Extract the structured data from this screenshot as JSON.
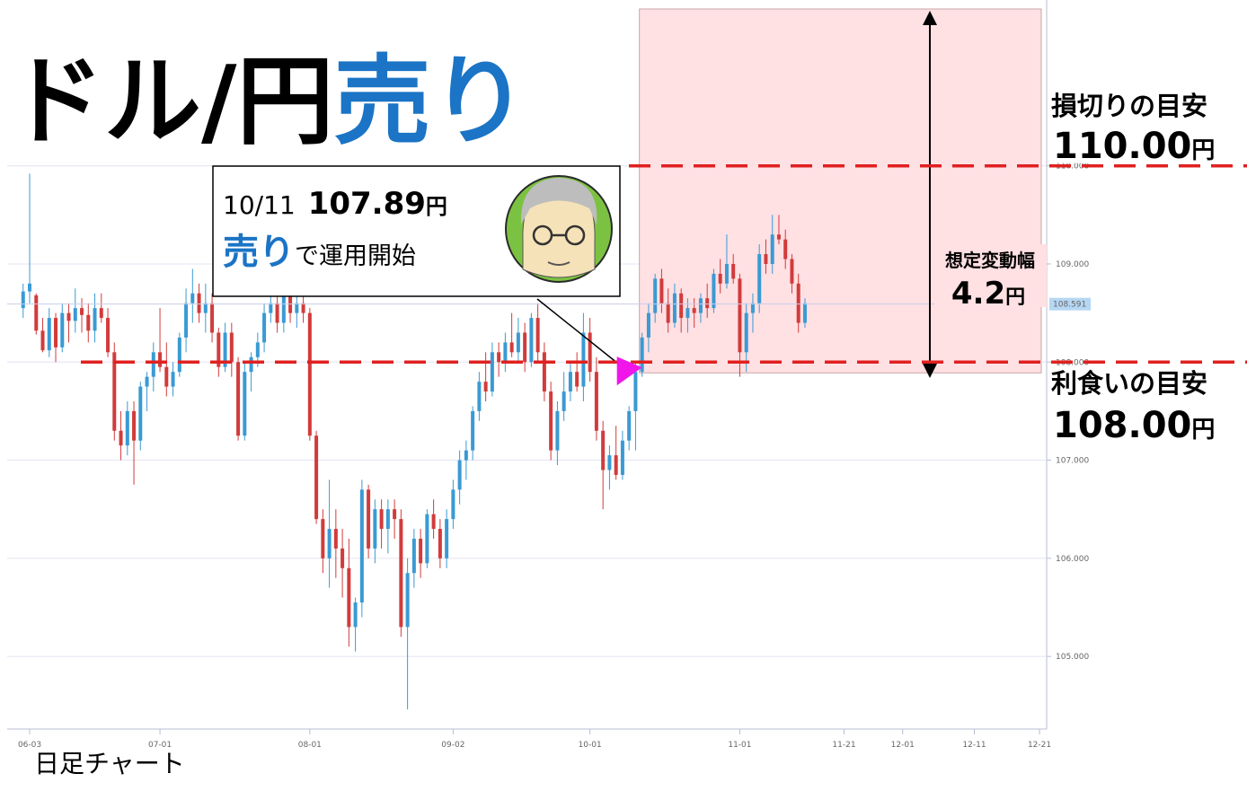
{
  "title": {
    "main": "ドル/円",
    "accent": "売り"
  },
  "chart_data": {
    "type": "candlestick",
    "ohlc": [
      [
        108.55,
        108.8,
        108.45,
        108.72
      ],
      [
        108.72,
        109.92,
        108.6,
        108.8
      ],
      [
        108.68,
        108.7,
        108.28,
        108.32
      ],
      [
        108.32,
        108.45,
        108.1,
        108.12
      ],
      [
        108.12,
        108.55,
        108.05,
        108.45
      ],
      [
        108.45,
        108.5,
        108.0,
        108.15
      ],
      [
        108.15,
        108.6,
        108.1,
        108.5
      ],
      [
        108.5,
        108.6,
        108.2,
        108.42
      ],
      [
        108.42,
        108.75,
        108.3,
        108.55
      ],
      [
        108.55,
        108.65,
        108.3,
        108.48
      ],
      [
        108.48,
        108.6,
        108.2,
        108.32
      ],
      [
        108.32,
        108.7,
        108.2,
        108.55
      ],
      [
        108.55,
        108.7,
        108.4,
        108.45
      ],
      [
        108.45,
        108.55,
        108.05,
        108.1
      ],
      [
        108.1,
        108.2,
        107.2,
        107.3
      ],
      [
        107.3,
        107.5,
        107.0,
        107.15
      ],
      [
        107.15,
        107.6,
        107.05,
        107.5
      ],
      [
        107.5,
        107.6,
        106.75,
        107.2
      ],
      [
        107.2,
        107.8,
        107.1,
        107.75
      ],
      [
        107.75,
        107.9,
        107.5,
        107.85
      ],
      [
        107.85,
        108.2,
        107.7,
        108.1
      ],
      [
        108.1,
        108.55,
        107.9,
        107.95
      ],
      [
        107.95,
        108.2,
        107.65,
        107.75
      ],
      [
        107.75,
        108.0,
        107.65,
        107.9
      ],
      [
        107.9,
        108.3,
        107.85,
        108.25
      ],
      [
        108.25,
        108.75,
        108.1,
        108.6
      ],
      [
        108.6,
        108.95,
        108.4,
        108.7
      ],
      [
        108.7,
        108.8,
        108.4,
        108.5
      ],
      [
        108.5,
        108.8,
        108.3,
        108.6
      ],
      [
        108.6,
        108.7,
        108.2,
        108.3
      ],
      [
        108.3,
        108.35,
        107.85,
        107.95
      ],
      [
        107.95,
        108.4,
        107.9,
        108.3
      ],
      [
        108.3,
        108.4,
        107.85,
        108.0
      ],
      [
        108.0,
        108.05,
        107.2,
        107.25
      ],
      [
        107.25,
        108.0,
        107.2,
        107.9
      ],
      [
        107.9,
        108.1,
        107.7,
        108.05
      ],
      [
        108.05,
        108.3,
        107.95,
        108.2
      ],
      [
        108.2,
        108.6,
        108.1,
        108.5
      ],
      [
        108.5,
        108.8,
        108.4,
        108.6
      ],
      [
        108.6,
        108.75,
        108.3,
        108.4
      ],
      [
        108.4,
        108.8,
        108.3,
        108.7
      ],
      [
        108.7,
        108.8,
        108.4,
        108.5
      ],
      [
        108.5,
        108.75,
        108.35,
        108.6
      ],
      [
        108.6,
        108.9,
        108.4,
        108.5
      ],
      [
        108.5,
        108.55,
        107.2,
        107.25
      ],
      [
        107.25,
        107.3,
        106.35,
        106.4
      ],
      [
        106.4,
        106.5,
        105.85,
        106.0
      ],
      [
        106.0,
        106.8,
        105.7,
        106.3
      ],
      [
        106.3,
        106.5,
        105.8,
        106.1
      ],
      [
        106.1,
        106.3,
        105.6,
        105.9
      ],
      [
        105.9,
        106.2,
        105.1,
        105.3
      ],
      [
        105.3,
        105.6,
        105.05,
        105.55
      ],
      [
        105.55,
        106.8,
        105.4,
        106.7
      ],
      [
        106.7,
        106.75,
        106.0,
        106.1
      ],
      [
        106.1,
        106.6,
        105.95,
        106.5
      ],
      [
        106.5,
        106.6,
        106.1,
        106.3
      ],
      [
        106.3,
        106.6,
        106.05,
        106.5
      ],
      [
        106.5,
        106.6,
        106.2,
        106.4
      ],
      [
        106.4,
        106.5,
        105.2,
        105.3
      ],
      [
        105.3,
        106.0,
        104.46,
        105.85
      ],
      [
        105.85,
        106.3,
        105.7,
        106.2
      ],
      [
        106.2,
        106.3,
        105.8,
        105.95
      ],
      [
        105.95,
        106.5,
        105.9,
        106.45
      ],
      [
        106.45,
        106.6,
        106.2,
        106.3
      ],
      [
        106.3,
        106.4,
        105.9,
        106.0
      ],
      [
        106.0,
        106.5,
        105.9,
        106.4
      ],
      [
        106.4,
        106.8,
        106.3,
        106.7
      ],
      [
        106.7,
        107.1,
        106.55,
        107.0
      ],
      [
        107.0,
        107.2,
        106.8,
        107.1
      ],
      [
        107.1,
        107.55,
        107.0,
        107.5
      ],
      [
        107.5,
        107.9,
        107.4,
        107.8
      ],
      [
        107.8,
        108.1,
        107.6,
        107.7
      ],
      [
        107.7,
        108.2,
        107.65,
        108.1
      ],
      [
        108.1,
        108.2,
        107.85,
        108.0
      ],
      [
        108.0,
        108.3,
        107.9,
        108.2
      ],
      [
        108.2,
        108.5,
        108.05,
        108.1
      ],
      [
        108.1,
        108.45,
        108.0,
        108.3
      ],
      [
        108.3,
        108.4,
        107.9,
        108.0
      ],
      [
        108.0,
        108.5,
        107.95,
        108.45
      ],
      [
        108.45,
        108.6,
        108.0,
        108.1
      ],
      [
        108.1,
        108.2,
        107.6,
        107.7
      ],
      [
        107.7,
        107.8,
        107.0,
        107.1
      ],
      [
        107.1,
        107.6,
        106.95,
        107.5
      ],
      [
        107.5,
        107.9,
        107.4,
        107.7
      ],
      [
        107.7,
        108.0,
        107.6,
        107.9
      ],
      [
        107.9,
        108.1,
        107.7,
        107.75
      ],
      [
        107.75,
        108.5,
        107.6,
        108.3
      ],
      [
        108.3,
        108.45,
        107.8,
        107.9
      ],
      [
        107.9,
        108.05,
        107.2,
        107.3
      ],
      [
        107.3,
        107.4,
        106.5,
        106.9
      ],
      [
        106.9,
        107.15,
        106.7,
        107.05
      ],
      [
        107.05,
        107.35,
        106.8,
        106.85
      ],
      [
        106.85,
        107.3,
        106.8,
        107.2
      ],
      [
        107.2,
        107.55,
        107.1,
        107.5
      ],
      [
        107.5,
        108.0,
        107.1,
        107.9
      ],
      [
        107.9,
        108.3,
        107.85,
        108.25
      ],
      [
        108.25,
        108.6,
        108.1,
        108.5
      ],
      [
        108.5,
        108.9,
        108.4,
        108.85
      ],
      [
        108.85,
        108.95,
        108.5,
        108.6
      ],
      [
        108.6,
        108.75,
        108.3,
        108.4
      ],
      [
        108.4,
        108.8,
        108.35,
        108.7
      ],
      [
        108.7,
        108.75,
        108.3,
        108.45
      ],
      [
        108.45,
        108.65,
        108.3,
        108.55
      ],
      [
        108.55,
        108.65,
        108.35,
        108.5
      ],
      [
        108.5,
        108.7,
        108.4,
        108.65
      ],
      [
        108.65,
        108.8,
        108.45,
        108.55
      ],
      [
        108.55,
        108.95,
        108.5,
        108.9
      ],
      [
        108.9,
        109.05,
        108.7,
        108.8
      ],
      [
        108.8,
        109.3,
        108.75,
        109.0
      ],
      [
        109.0,
        109.1,
        108.8,
        108.85
      ],
      [
        108.85,
        108.9,
        107.85,
        108.1
      ],
      [
        108.1,
        108.6,
        107.9,
        108.5
      ],
      [
        108.5,
        108.7,
        108.3,
        108.6
      ],
      [
        108.6,
        109.2,
        108.5,
        109.1
      ],
      [
        109.1,
        109.25,
        108.9,
        109.0
      ],
      [
        109.0,
        109.5,
        108.9,
        109.3
      ],
      [
        109.3,
        109.5,
        109.2,
        109.25
      ],
      [
        109.25,
        109.35,
        108.95,
        109.05
      ],
      [
        109.05,
        109.1,
        108.7,
        108.8
      ],
      [
        108.8,
        108.9,
        108.3,
        108.4
      ],
      [
        108.4,
        108.65,
        108.35,
        108.6
      ]
    ],
    "up_color": "#3a9ad4",
    "down_color": "#d23b3b",
    "xlim": [
      -2.45,
      157.1
    ],
    "xticks": [
      {
        "value": 1,
        "label": "06-03"
      },
      {
        "value": 21,
        "label": "07-01"
      },
      {
        "value": 44,
        "label": "08-01"
      },
      {
        "value": 66,
        "label": "09-02"
      },
      {
        "value": 87,
        "label": "10-01"
      },
      {
        "value": 110,
        "label": "11-01"
      },
      {
        "value": 126,
        "label": "11-21"
      },
      {
        "value": 135,
        "label": "12-01"
      },
      {
        "value": 146,
        "label": "12-11"
      },
      {
        "value": 156,
        "label": "12-21"
      }
    ],
    "ylim": [
      104.26,
      111.69
    ],
    "yticks": [
      {
        "value": 105,
        "label": "105.000"
      },
      {
        "value": 106,
        "label": "106.000"
      },
      {
        "value": 107,
        "label": "107.000"
      },
      {
        "value": 108,
        "label": "108.000"
      },
      {
        "value": 109,
        "label": "109.000"
      },
      {
        "value": 110,
        "label": "110.000"
      }
    ],
    "grid": true,
    "last_price": 108.591,
    "levels": [
      {
        "name": "損切りの目安",
        "value": 110,
        "value_label": "110.00",
        "unit": "円"
      },
      {
        "name": "利食いの目安",
        "value": 108,
        "value_label": "108.00",
        "unit": "円"
      }
    ],
    "entry": {
      "date": "10/11",
      "x": 95,
      "value": 107.89,
      "unit": "円",
      "action": "売り",
      "action_text": "で運用開始"
    },
    "range": {
      "label": "想定変動幅",
      "value": 4.2,
      "unit": "円"
    }
  },
  "footer": "日足チャート"
}
